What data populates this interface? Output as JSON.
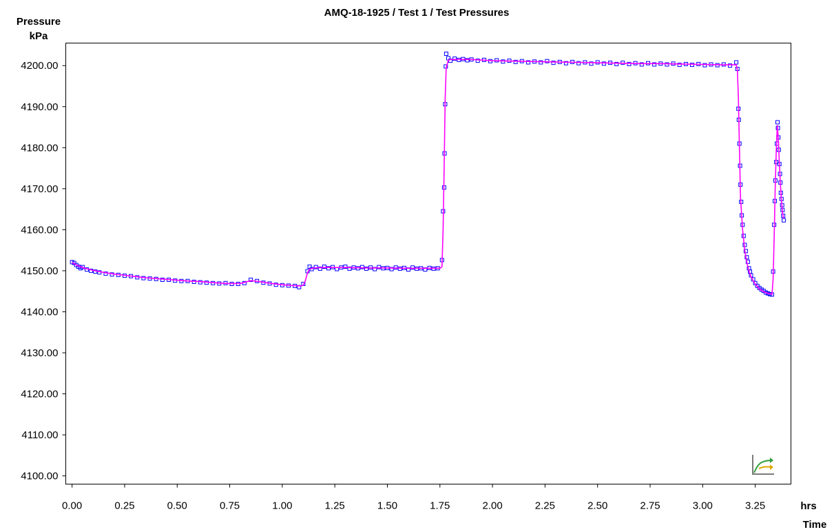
{
  "chart_data": {
    "type": "line",
    "title": "AMQ-18-1925 / Test 1 / Test Pressures",
    "ylabel_line1": "Pressure",
    "ylabel_line2": "kPa",
    "xunit": "hrs",
    "xlabel": "Time",
    "xlim": [
      -0.03,
      3.42
    ],
    "ylim": [
      4098.0,
      4205.5
    ],
    "xticks": [
      "0.00",
      "0.25",
      "0.50",
      "0.75",
      "1.00",
      "1.25",
      "1.50",
      "1.75",
      "2.00",
      "2.25",
      "2.50",
      "2.75",
      "3.00",
      "3.25"
    ],
    "yticks": [
      "4100.00",
      "4110.00",
      "4120.00",
      "4130.00",
      "4140.00",
      "4150.00",
      "4160.00",
      "4170.00",
      "4180.00",
      "4190.00",
      "4200.00"
    ],
    "grid": false,
    "series": [
      {
        "name": "",
        "color": "#ff00ff",
        "style": "line",
        "points": [
          [
            0.0,
            4152.0
          ],
          [
            0.03,
            4151.2
          ],
          [
            0.06,
            4150.6
          ],
          [
            0.1,
            4150.1
          ],
          [
            0.15,
            4149.6
          ],
          [
            0.2,
            4149.2
          ],
          [
            0.25,
            4148.9
          ],
          [
            0.3,
            4148.6
          ],
          [
            0.35,
            4148.3
          ],
          [
            0.4,
            4148.1
          ],
          [
            0.45,
            4147.9
          ],
          [
            0.5,
            4147.7
          ],
          [
            0.55,
            4147.5
          ],
          [
            0.6,
            4147.4
          ],
          [
            0.65,
            4147.2
          ],
          [
            0.7,
            4147.0
          ],
          [
            0.75,
            4146.9
          ],
          [
            0.8,
            4146.9
          ],
          [
            0.85,
            4147.6
          ],
          [
            0.9,
            4147.3
          ],
          [
            0.95,
            4146.9
          ],
          [
            1.0,
            4146.6
          ],
          [
            1.05,
            4146.4
          ],
          [
            1.09,
            4146.3
          ],
          [
            1.1,
            4146.5
          ],
          [
            1.11,
            4147.6
          ],
          [
            1.12,
            4149.5
          ],
          [
            1.13,
            4150.4
          ],
          [
            1.15,
            4150.7
          ],
          [
            1.2,
            4150.8
          ],
          [
            1.3,
            4150.8
          ],
          [
            1.4,
            4150.7
          ],
          [
            1.5,
            4150.7
          ],
          [
            1.6,
            4150.6
          ],
          [
            1.7,
            4150.6
          ],
          [
            1.75,
            4150.6
          ],
          [
            1.76,
            4151.0
          ],
          [
            1.765,
            4160.0
          ],
          [
            1.77,
            4175.0
          ],
          [
            1.775,
            4192.0
          ],
          [
            1.78,
            4199.5
          ],
          [
            1.79,
            4201.3
          ],
          [
            1.8,
            4201.5
          ],
          [
            1.9,
            4201.5
          ],
          [
            2.0,
            4201.2
          ],
          [
            2.1,
            4201.1
          ],
          [
            2.2,
            4201.0
          ],
          [
            2.3,
            4200.9
          ],
          [
            2.4,
            4200.8
          ],
          [
            2.5,
            4200.7
          ],
          [
            2.6,
            4200.6
          ],
          [
            2.7,
            4200.5
          ],
          [
            2.8,
            4200.5
          ],
          [
            2.9,
            4200.4
          ],
          [
            3.0,
            4200.3
          ],
          [
            3.1,
            4200.2
          ],
          [
            3.16,
            4200.2
          ],
          [
            3.165,
            4199.0
          ],
          [
            3.17,
            4192.0
          ],
          [
            3.175,
            4180.0
          ],
          [
            3.18,
            4168.0
          ],
          [
            3.19,
            4160.0
          ],
          [
            3.2,
            4155.0
          ],
          [
            3.21,
            4152.0
          ],
          [
            3.22,
            4150.0
          ],
          [
            3.23,
            4148.5
          ],
          [
            3.25,
            4146.8
          ],
          [
            3.27,
            4145.6
          ],
          [
            3.29,
            4144.9
          ],
          [
            3.31,
            4144.5
          ],
          [
            3.33,
            4144.3
          ],
          [
            3.335,
            4148.0
          ],
          [
            3.34,
            4158.0
          ],
          [
            3.345,
            4170.0
          ],
          [
            3.35,
            4179.0
          ],
          [
            3.355,
            4185.5
          ],
          [
            3.36,
            4182.0
          ],
          [
            3.365,
            4176.0
          ],
          [
            3.37,
            4171.0
          ],
          [
            3.375,
            4167.0
          ],
          [
            3.38,
            4164.0
          ],
          [
            3.385,
            4162.8
          ]
        ]
      },
      {
        "name": "",
        "color": "#0000ff",
        "style": "markers",
        "marker": "square",
        "points": [
          [
            0.0,
            4152.1
          ],
          [
            0.01,
            4151.9
          ],
          [
            0.02,
            4151.4
          ],
          [
            0.03,
            4151.0
          ],
          [
            0.04,
            4150.6
          ],
          [
            0.05,
            4150.9
          ],
          [
            0.07,
            4150.3
          ],
          [
            0.09,
            4150.0
          ],
          [
            0.11,
            4149.8
          ],
          [
            0.13,
            4149.6
          ],
          [
            0.16,
            4149.3
          ],
          [
            0.19,
            4149.1
          ],
          [
            0.22,
            4149.0
          ],
          [
            0.25,
            4148.8
          ],
          [
            0.28,
            4148.7
          ],
          [
            0.31,
            4148.4
          ],
          [
            0.34,
            4148.2
          ],
          [
            0.37,
            4148.1
          ],
          [
            0.4,
            4148.0
          ],
          [
            0.43,
            4147.8
          ],
          [
            0.46,
            4147.8
          ],
          [
            0.49,
            4147.6
          ],
          [
            0.52,
            4147.5
          ],
          [
            0.55,
            4147.5
          ],
          [
            0.58,
            4147.3
          ],
          [
            0.61,
            4147.2
          ],
          [
            0.64,
            4147.1
          ],
          [
            0.67,
            4147.0
          ],
          [
            0.7,
            4146.9
          ],
          [
            0.73,
            4147.0
          ],
          [
            0.76,
            4146.8
          ],
          [
            0.79,
            4146.8
          ],
          [
            0.82,
            4147.0
          ],
          [
            0.85,
            4147.8
          ],
          [
            0.88,
            4147.5
          ],
          [
            0.91,
            4147.1
          ],
          [
            0.94,
            4146.9
          ],
          [
            0.97,
            4146.6
          ],
          [
            1.0,
            4146.5
          ],
          [
            1.03,
            4146.4
          ],
          [
            1.06,
            4146.3
          ],
          [
            1.08,
            4146.0
          ],
          [
            1.1,
            4146.8
          ],
          [
            1.12,
            4149.9
          ],
          [
            1.13,
            4151.0
          ],
          [
            1.14,
            4150.4
          ],
          [
            1.16,
            4150.9
          ],
          [
            1.18,
            4150.5
          ],
          [
            1.2,
            4151.0
          ],
          [
            1.22,
            4150.6
          ],
          [
            1.24,
            4150.9
          ],
          [
            1.26,
            4150.4
          ],
          [
            1.28,
            4150.8
          ],
          [
            1.3,
            4151.0
          ],
          [
            1.32,
            4150.5
          ],
          [
            1.34,
            4150.8
          ],
          [
            1.36,
            4150.6
          ],
          [
            1.38,
            4150.9
          ],
          [
            1.4,
            4150.5
          ],
          [
            1.42,
            4150.8
          ],
          [
            1.44,
            4150.4
          ],
          [
            1.46,
            4150.9
          ],
          [
            1.48,
            4150.6
          ],
          [
            1.5,
            4150.7
          ],
          [
            1.52,
            4150.4
          ],
          [
            1.54,
            4150.8
          ],
          [
            1.56,
            4150.5
          ],
          [
            1.58,
            4150.7
          ],
          [
            1.6,
            4150.3
          ],
          [
            1.62,
            4150.8
          ],
          [
            1.64,
            4150.5
          ],
          [
            1.66,
            4150.6
          ],
          [
            1.68,
            4150.3
          ],
          [
            1.7,
            4150.7
          ],
          [
            1.72,
            4150.5
          ],
          [
            1.74,
            4150.6
          ],
          [
            1.76,
            4152.6
          ],
          [
            1.765,
            4164.5
          ],
          [
            1.77,
            4170.3
          ],
          [
            1.772,
            4178.6
          ],
          [
            1.775,
            4190.6
          ],
          [
            1.778,
            4199.8
          ],
          [
            1.78,
            4202.9
          ],
          [
            1.79,
            4201.8
          ],
          [
            1.8,
            4201.2
          ],
          [
            1.82,
            4201.7
          ],
          [
            1.84,
            4201.4
          ],
          [
            1.86,
            4201.6
          ],
          [
            1.88,
            4201.3
          ],
          [
            1.9,
            4201.5
          ],
          [
            1.93,
            4201.2
          ],
          [
            1.96,
            4201.4
          ],
          [
            1.99,
            4201.1
          ],
          [
            2.02,
            4201.3
          ],
          [
            2.05,
            4201.0
          ],
          [
            2.08,
            4201.2
          ],
          [
            2.11,
            4200.9
          ],
          [
            2.14,
            4201.1
          ],
          [
            2.17,
            4200.8
          ],
          [
            2.2,
            4201.0
          ],
          [
            2.23,
            4200.8
          ],
          [
            2.26,
            4201.1
          ],
          [
            2.29,
            4200.7
          ],
          [
            2.32,
            4200.9
          ],
          [
            2.35,
            4200.6
          ],
          [
            2.38,
            4200.9
          ],
          [
            2.41,
            4200.6
          ],
          [
            2.44,
            4200.8
          ],
          [
            2.47,
            4200.5
          ],
          [
            2.5,
            4200.8
          ],
          [
            2.53,
            4200.5
          ],
          [
            2.56,
            4200.7
          ],
          [
            2.59,
            4200.4
          ],
          [
            2.62,
            4200.7
          ],
          [
            2.65,
            4200.4
          ],
          [
            2.68,
            4200.6
          ],
          [
            2.71,
            4200.3
          ],
          [
            2.74,
            4200.6
          ],
          [
            2.77,
            4200.3
          ],
          [
            2.8,
            4200.5
          ],
          [
            2.83,
            4200.3
          ],
          [
            2.86,
            4200.5
          ],
          [
            2.89,
            4200.2
          ],
          [
            2.92,
            4200.4
          ],
          [
            2.95,
            4200.2
          ],
          [
            2.98,
            4200.4
          ],
          [
            3.01,
            4200.1
          ],
          [
            3.04,
            4200.3
          ],
          [
            3.07,
            4200.1
          ],
          [
            3.1,
            4200.3
          ],
          [
            3.13,
            4200.0
          ],
          [
            3.16,
            4200.8
          ],
          [
            3.165,
            4199.2
          ],
          [
            3.17,
            4189.5
          ],
          [
            3.172,
            4186.8
          ],
          [
            3.175,
            4181.0
          ],
          [
            3.178,
            4175.6
          ],
          [
            3.18,
            4171.0
          ],
          [
            3.183,
            4166.8
          ],
          [
            3.186,
            4163.5
          ],
          [
            3.19,
            4161.2
          ],
          [
            3.195,
            4158.5
          ],
          [
            3.2,
            4156.3
          ],
          [
            3.205,
            4154.8
          ],
          [
            3.21,
            4153.3
          ],
          [
            3.215,
            4152.2
          ],
          [
            3.22,
            4150.6
          ],
          [
            3.225,
            4149.8
          ],
          [
            3.23,
            4148.9
          ],
          [
            3.24,
            4147.9
          ],
          [
            3.25,
            4147.0
          ],
          [
            3.26,
            4146.3
          ],
          [
            3.27,
            4145.8
          ],
          [
            3.28,
            4145.4
          ],
          [
            3.29,
            4145.1
          ],
          [
            3.3,
            4144.7
          ],
          [
            3.31,
            4144.5
          ],
          [
            3.32,
            4144.3
          ],
          [
            3.33,
            4144.2
          ],
          [
            3.335,
            4149.8
          ],
          [
            3.34,
            4161.2
          ],
          [
            3.343,
            4167.0
          ],
          [
            3.346,
            4172.0
          ],
          [
            3.35,
            4176.5
          ],
          [
            3.353,
            4181.0
          ],
          [
            3.356,
            4186.2
          ],
          [
            3.358,
            4184.8
          ],
          [
            3.36,
            4182.5
          ],
          [
            3.362,
            4179.5
          ],
          [
            3.365,
            4176.0
          ],
          [
            3.368,
            4173.6
          ],
          [
            3.37,
            4171.5
          ],
          [
            3.372,
            4169.0
          ],
          [
            3.375,
            4167.5
          ],
          [
            3.378,
            4166.0
          ],
          [
            3.38,
            4164.8
          ],
          [
            3.383,
            4163.4
          ],
          [
            3.386,
            4162.3
          ]
        ]
      }
    ]
  },
  "icon": "graph-settings-icon"
}
